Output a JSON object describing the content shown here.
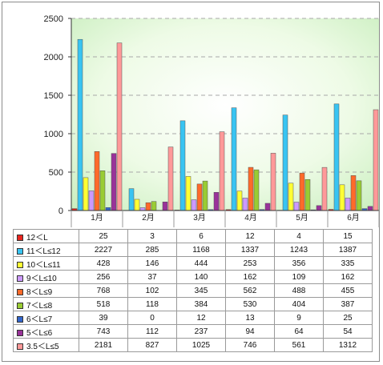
{
  "chart_data": {
    "type": "bar",
    "categories": [
      "1月",
      "2月",
      "3月",
      "4月",
      "5月",
      "6月"
    ],
    "ylim": [
      0,
      2500
    ],
    "yticks": [
      0,
      500,
      1000,
      1500,
      2000,
      2500
    ],
    "grid": true,
    "legend": "table-below",
    "series": [
      {
        "name": "12＜L",
        "color": "#e8251f",
        "values": [
          25,
          3,
          6,
          12,
          4,
          15
        ]
      },
      {
        "name": "11＜L≤12",
        "color": "#38c4f2",
        "values": [
          2227,
          285,
          1168,
          1337,
          1243,
          1387
        ]
      },
      {
        "name": "10＜L≤11",
        "color": "#ffff33",
        "values": [
          428,
          146,
          444,
          253,
          356,
          335
        ]
      },
      {
        "name": "9＜L≤10",
        "color": "#cc99ff",
        "values": [
          256,
          37,
          140,
          162,
          109,
          162
        ]
      },
      {
        "name": "8＜L≤9",
        "color": "#ff6a2a",
        "values": [
          768,
          102,
          345,
          562,
          488,
          455
        ]
      },
      {
        "name": "7＜L≤8",
        "color": "#99cc33",
        "values": [
          518,
          118,
          384,
          530,
          404,
          387
        ]
      },
      {
        "name": "6＜L≤7",
        "color": "#3366cc",
        "values": [
          39,
          0,
          12,
          13,
          9,
          25
        ]
      },
      {
        "name": "5＜L≤6",
        "color": "#993399",
        "values": [
          743,
          112,
          237,
          94,
          64,
          54
        ]
      },
      {
        "name": "3.5＜L≤5",
        "color": "#ff9999",
        "values": [
          2181,
          827,
          1025,
          746,
          561,
          1312
        ]
      }
    ]
  }
}
